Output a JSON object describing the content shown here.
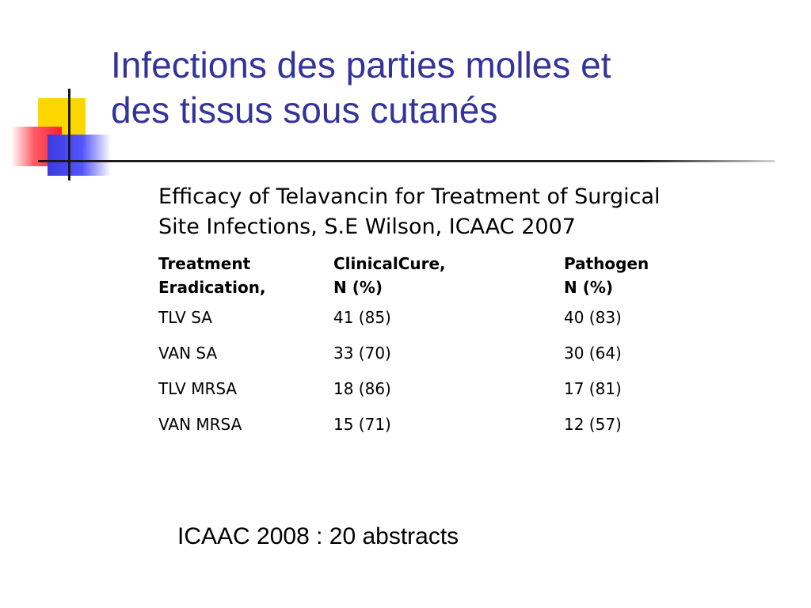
{
  "slide": {
    "title_lines": [
      "Infections des parties molles et",
      "des tissus sous cutanés"
    ],
    "subtitle_lines": [
      "Efficacy of Telavancin for Treatment of Surgical",
      "Site Infections, S.E Wilson, ICAAC 2007"
    ],
    "table": {
      "headers": [
        [
          "Treatment",
          "Eradication,"
        ],
        [
          "ClinicalCure,",
          "N (%)"
        ],
        [
          "Pathogen",
          "N (%)"
        ]
      ],
      "rows": [
        [
          "TLV SA",
          "41 (85)",
          "40 (83)"
        ],
        [
          "VAN SA",
          "33 (70)",
          "30 (64)"
        ],
        [
          "TLV MRSA",
          "18 (86)",
          "17 (81)"
        ],
        [
          "VAN MRSA",
          "15 (71)",
          "12 (57)"
        ]
      ]
    },
    "footer_note": "ICAAC 2008 : 20 abstracts",
    "colors": {
      "title": "#333399",
      "text": "#000000",
      "logo_yellow": "#ffd700",
      "logo_red": "#ff2030",
      "logo_blue": "#3a3ae0"
    }
  }
}
